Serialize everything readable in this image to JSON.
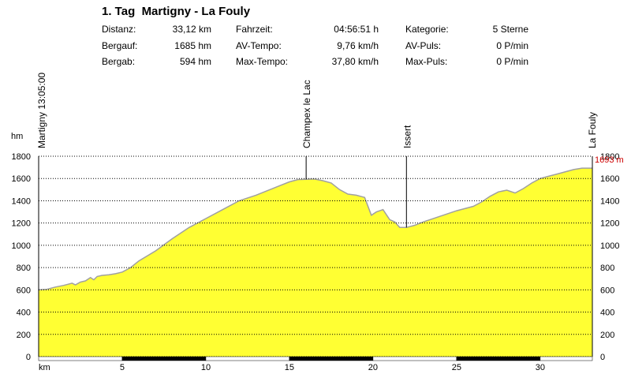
{
  "header": {
    "title": "1. Tag  Martigny - La Fouly",
    "stats": [
      {
        "label": "Distanz:",
        "value": "33,12 km"
      },
      {
        "label": "Bergauf:",
        "value": "1685 hm"
      },
      {
        "label": "Bergab:",
        "value": "594 hm"
      },
      {
        "label": "Fahrzeit:",
        "value": "04:56:51 h"
      },
      {
        "label": "AV-Tempo:",
        "value": "9,76 km/h"
      },
      {
        "label": "Max-Tempo:",
        "value": "37,80 km/h"
      },
      {
        "label": "Kategorie:",
        "value": "5 Sterne"
      },
      {
        "label": "AV-Puls:",
        "value": "0 P/min"
      },
      {
        "label": "Max-Puls:",
        "value": "0 P/min"
      }
    ]
  },
  "chart_data": {
    "type": "area",
    "ylabel": "hm",
    "xlabel": "km",
    "xlim": [
      0,
      33.12
    ],
    "ylim": [
      0,
      1800
    ],
    "yticks": [
      0,
      200,
      400,
      600,
      800,
      1000,
      1200,
      1400,
      1600,
      1800
    ],
    "xticks": [
      5,
      10,
      15,
      20,
      25,
      30
    ],
    "x_start_label": "km",
    "grid": "horizontal dotted",
    "colors": {
      "fill": "#ffff33",
      "profile_line": "#a0a0a0",
      "max_label": "#cc0000"
    },
    "max_label": "1693 m",
    "waypoints": [
      {
        "name": "Martigny 13:05:00",
        "km": 0
      },
      {
        "name": "Champex le Lac",
        "km": 16.0
      },
      {
        "name": "Issert",
        "km": 22.0
      },
      {
        "name": "La Fouly",
        "km": 33.12
      }
    ],
    "x": [
      0,
      0.5,
      1,
      1.5,
      2,
      2.2,
      2.5,
      2.8,
      3.1,
      3.3,
      3.5,
      3.8,
      4.2,
      4.6,
      5,
      5.5,
      6,
      7,
      8,
      9,
      10,
      11,
      12,
      13,
      14,
      14.5,
      15,
      15.5,
      16,
      16.5,
      17,
      17.5,
      18,
      18.5,
      19,
      19.5,
      19.9,
      20.2,
      20.6,
      21,
      21.3,
      21.6,
      22,
      22.5,
      23,
      24,
      25,
      26,
      26.5,
      27,
      27.5,
      28,
      28.5,
      29,
      29.5,
      30,
      30.5,
      31,
      32,
      32.5,
      33.12
    ],
    "y": [
      600,
      605,
      625,
      640,
      660,
      645,
      670,
      680,
      710,
      690,
      720,
      730,
      735,
      745,
      760,
      800,
      860,
      950,
      1060,
      1160,
      1240,
      1320,
      1400,
      1450,
      1510,
      1540,
      1570,
      1590,
      1593,
      1595,
      1580,
      1560,
      1500,
      1460,
      1450,
      1430,
      1270,
      1300,
      1320,
      1230,
      1210,
      1160,
      1160,
      1180,
      1210,
      1260,
      1310,
      1350,
      1390,
      1440,
      1480,
      1495,
      1470,
      1510,
      1560,
      1600,
      1620,
      1640,
      1680,
      1693,
      1693
    ]
  }
}
